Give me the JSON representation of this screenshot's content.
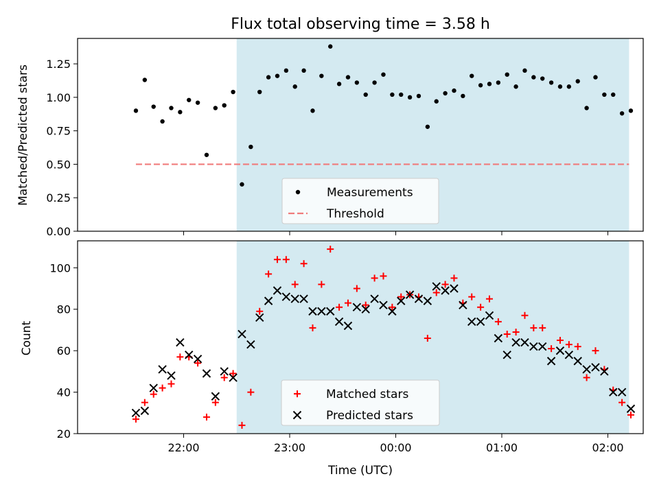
{
  "chart_data": [
    {
      "type": "scatter",
      "title": "Flux total observing time = 3.58 h",
      "ylabel": "Matched/Predicted stars",
      "xlabel": "",
      "ylim": [
        0,
        1.44
      ],
      "yticks": [
        "0.00",
        "0.25",
        "0.50",
        "0.75",
        "1.00",
        "1.25"
      ],
      "shaded_region": {
        "x_start": "22:30",
        "x_end": "02:12",
        "color": "#d4eaf1"
      },
      "legend": {
        "position": "bottom-center",
        "entries": [
          "Measurements",
          "Threshold"
        ]
      },
      "threshold": {
        "name": "Threshold",
        "value": 0.5,
        "x_start": "21:33",
        "x_end": "02:12",
        "color": "#f07b7b",
        "style": "dashed"
      },
      "series": [
        {
          "name": "Measurements",
          "color": "#000000",
          "marker": "dot",
          "points": [
            [
              "21:33",
              0.9
            ],
            [
              "21:38",
              1.13
            ],
            [
              "21:43",
              0.93
            ],
            [
              "21:48",
              0.82
            ],
            [
              "21:53",
              0.92
            ],
            [
              "21:58",
              0.89
            ],
            [
              "22:03",
              0.98
            ],
            [
              "22:08",
              0.96
            ],
            [
              "22:13",
              0.57
            ],
            [
              "22:18",
              0.92
            ],
            [
              "22:23",
              0.94
            ],
            [
              "22:28",
              1.04
            ],
            [
              "22:33",
              0.35
            ],
            [
              "22:38",
              0.63
            ],
            [
              "22:43",
              1.04
            ],
            [
              "22:48",
              1.15
            ],
            [
              "22:53",
              1.16
            ],
            [
              "22:58",
              1.2
            ],
            [
              "23:03",
              1.08
            ],
            [
              "23:08",
              1.2
            ],
            [
              "23:13",
              0.9
            ],
            [
              "23:18",
              1.16
            ],
            [
              "23:23",
              1.38
            ],
            [
              "23:28",
              1.1
            ],
            [
              "23:33",
              1.15
            ],
            [
              "23:38",
              1.11
            ],
            [
              "23:43",
              1.02
            ],
            [
              "23:48",
              1.11
            ],
            [
              "23:53",
              1.17
            ],
            [
              "23:58",
              1.02
            ],
            [
              "00:03",
              1.02
            ],
            [
              "00:08",
              1.0
            ],
            [
              "00:13",
              1.01
            ],
            [
              "00:18",
              0.78
            ],
            [
              "00:23",
              0.97
            ],
            [
              "00:28",
              1.03
            ],
            [
              "00:33",
              1.05
            ],
            [
              "00:38",
              1.01
            ],
            [
              "00:43",
              1.16
            ],
            [
              "00:48",
              1.09
            ],
            [
              "00:53",
              1.1
            ],
            [
              "00:58",
              1.11
            ],
            [
              "01:03",
              1.17
            ],
            [
              "01:08",
              1.08
            ],
            [
              "01:13",
              1.2
            ],
            [
              "01:18",
              1.15
            ],
            [
              "01:23",
              1.14
            ],
            [
              "01:28",
              1.11
            ],
            [
              "01:33",
              1.08
            ],
            [
              "01:38",
              1.08
            ],
            [
              "01:43",
              1.12
            ],
            [
              "01:48",
              0.92
            ],
            [
              "01:53",
              1.15
            ],
            [
              "01:58",
              1.02
            ],
            [
              "02:03",
              1.02
            ],
            [
              "02:08",
              0.88
            ],
            [
              "02:13",
              0.9
            ]
          ]
        }
      ]
    },
    {
      "type": "scatter",
      "title": "",
      "xlabel": "Time (UTC)",
      "ylabel": "Count",
      "ylim": [
        20,
        113
      ],
      "yticks": [
        "20",
        "40",
        "60",
        "80",
        "100"
      ],
      "xticks": [
        "22:00",
        "23:00",
        "00:00",
        "01:00",
        "02:00"
      ],
      "shaded_region": {
        "x_start": "22:30",
        "x_end": "02:12",
        "color": "#d4eaf1"
      },
      "legend": {
        "position": "bottom-center",
        "entries": [
          "Matched stars",
          "Predicted stars"
        ]
      },
      "series": [
        {
          "name": "Matched stars",
          "color": "#ff0000",
          "marker": "plus",
          "points": [
            [
              "21:33",
              27
            ],
            [
              "21:38",
              35
            ],
            [
              "21:43",
              39
            ],
            [
              "21:48",
              42
            ],
            [
              "21:53",
              44
            ],
            [
              "21:58",
              57
            ],
            [
              "22:03",
              57
            ],
            [
              "22:08",
              54
            ],
            [
              "22:13",
              28
            ],
            [
              "22:18",
              35
            ],
            [
              "22:23",
              47
            ],
            [
              "22:28",
              49
            ],
            [
              "22:33",
              24
            ],
            [
              "22:38",
              40
            ],
            [
              "22:43",
              79
            ],
            [
              "22:48",
              97
            ],
            [
              "22:53",
              104
            ],
            [
              "22:58",
              104
            ],
            [
              "23:03",
              92
            ],
            [
              "23:08",
              102
            ],
            [
              "23:13",
              71
            ],
            [
              "23:18",
              92
            ],
            [
              "23:23",
              109
            ],
            [
              "23:28",
              81
            ],
            [
              "23:33",
              83
            ],
            [
              "23:38",
              90
            ],
            [
              "23:43",
              82
            ],
            [
              "23:48",
              95
            ],
            [
              "23:53",
              96
            ],
            [
              "23:58",
              81
            ],
            [
              "00:03",
              86
            ],
            [
              "00:08",
              87
            ],
            [
              "00:13",
              86
            ],
            [
              "00:18",
              66
            ],
            [
              "00:23",
              88
            ],
            [
              "00:28",
              92
            ],
            [
              "00:33",
              95
            ],
            [
              "00:38",
              83
            ],
            [
              "00:43",
              86
            ],
            [
              "00:48",
              81
            ],
            [
              "00:53",
              85
            ],
            [
              "00:58",
              74
            ],
            [
              "01:03",
              68
            ],
            [
              "01:08",
              69
            ],
            [
              "01:13",
              77
            ],
            [
              "01:18",
              71
            ],
            [
              "01:23",
              71
            ],
            [
              "01:28",
              61
            ],
            [
              "01:33",
              65
            ],
            [
              "01:38",
              63
            ],
            [
              "01:43",
              62
            ],
            [
              "01:48",
              47
            ],
            [
              "01:53",
              60
            ],
            [
              "01:58",
              51
            ],
            [
              "02:03",
              41
            ],
            [
              "02:08",
              35
            ],
            [
              "02:13",
              29
            ]
          ]
        },
        {
          "name": "Predicted stars",
          "color": "#000000",
          "marker": "x",
          "points": [
            [
              "21:33",
              30
            ],
            [
              "21:38",
              31
            ],
            [
              "21:43",
              42
            ],
            [
              "21:48",
              51
            ],
            [
              "21:53",
              48
            ],
            [
              "21:58",
              64
            ],
            [
              "22:03",
              58
            ],
            [
              "22:08",
              56
            ],
            [
              "22:13",
              49
            ],
            [
              "22:18",
              38
            ],
            [
              "22:23",
              50
            ],
            [
              "22:28",
              47
            ],
            [
              "22:33",
              68
            ],
            [
              "22:38",
              63
            ],
            [
              "22:43",
              76
            ],
            [
              "22:48",
              84
            ],
            [
              "22:53",
              89
            ],
            [
              "22:58",
              86
            ],
            [
              "23:03",
              85
            ],
            [
              "23:08",
              85
            ],
            [
              "23:13",
              79
            ],
            [
              "23:18",
              79
            ],
            [
              "23:23",
              79
            ],
            [
              "23:28",
              74
            ],
            [
              "23:33",
              72
            ],
            [
              "23:38",
              81
            ],
            [
              "23:43",
              80
            ],
            [
              "23:48",
              85
            ],
            [
              "23:53",
              82
            ],
            [
              "23:58",
              79
            ],
            [
              "00:03",
              84
            ],
            [
              "00:08",
              87
            ],
            [
              "00:13",
              85
            ],
            [
              "00:18",
              84
            ],
            [
              "00:23",
              91
            ],
            [
              "00:28",
              89
            ],
            [
              "00:33",
              90
            ],
            [
              "00:38",
              82
            ],
            [
              "00:43",
              74
            ],
            [
              "00:48",
              74
            ],
            [
              "00:53",
              77
            ],
            [
              "00:58",
              66
            ],
            [
              "01:03",
              58
            ],
            [
              "01:08",
              64
            ],
            [
              "01:13",
              64
            ],
            [
              "01:18",
              62
            ],
            [
              "01:23",
              62
            ],
            [
              "01:28",
              55
            ],
            [
              "01:33",
              60
            ],
            [
              "01:38",
              58
            ],
            [
              "01:43",
              55
            ],
            [
              "01:48",
              51
            ],
            [
              "01:53",
              52
            ],
            [
              "01:58",
              50
            ],
            [
              "02:03",
              40
            ],
            [
              "02:08",
              40
            ],
            [
              "02:13",
              32
            ]
          ]
        }
      ]
    }
  ]
}
